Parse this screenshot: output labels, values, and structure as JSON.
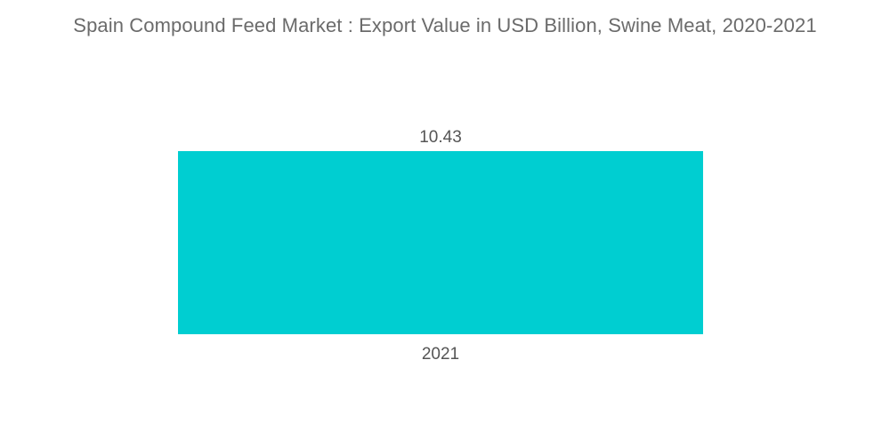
{
  "chart_data": {
    "type": "bar",
    "title": "Spain Compound Feed Market : Export Value in USD Billion, Swine Meat, 2020-2021",
    "categories": [
      "2021"
    ],
    "values": [
      10.43
    ],
    "value_labels": [
      "10.43"
    ],
    "xlabel": "",
    "ylabel": "",
    "ylim": [
      0,
      10.43
    ],
    "grid": false,
    "legend": "none",
    "colors": {
      "bar": "#00CED1",
      "title": "#6b6b6b",
      "label": "#555555"
    }
  }
}
